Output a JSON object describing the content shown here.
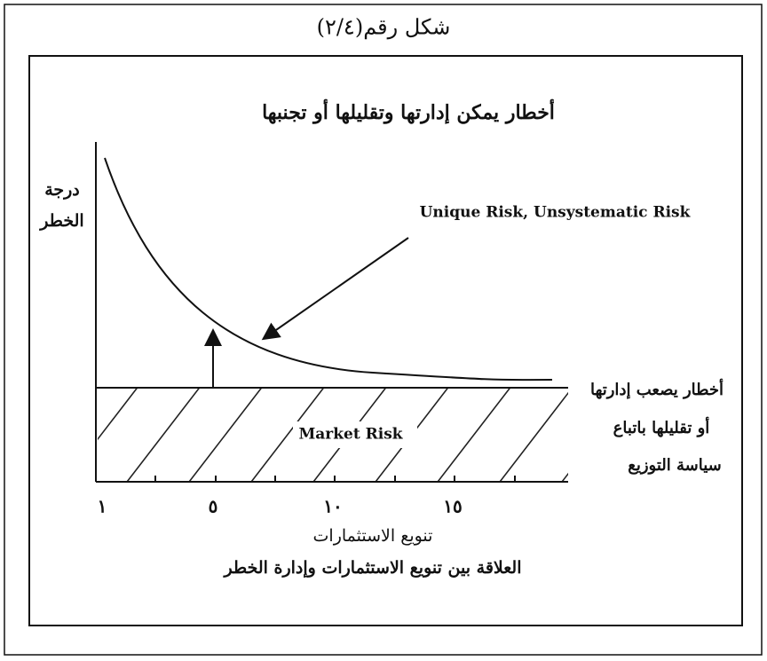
{
  "figure_label": "شكل رقم(٢/٤)",
  "title": "أخطار يمكن إدارتها وتقليلها أو تجنبها",
  "y_axis_label": [
    "درجة",
    "الخطر"
  ],
  "curve_label": "Unique Risk, Unsystematic Risk",
  "band_label": "Market Risk",
  "side_label": [
    "أخطار يصعب إدارتها",
    "أو تقليلها باتباع",
    "سياسة التوزيع"
  ],
  "x_tick_labels": [
    "١",
    "٥",
    "١٠",
    "١٥"
  ],
  "x_axis_label": "تنويع الاستثمارات",
  "caption": "العلاقة بين تنويع الاستثمارات وإدارة الخطر"
}
